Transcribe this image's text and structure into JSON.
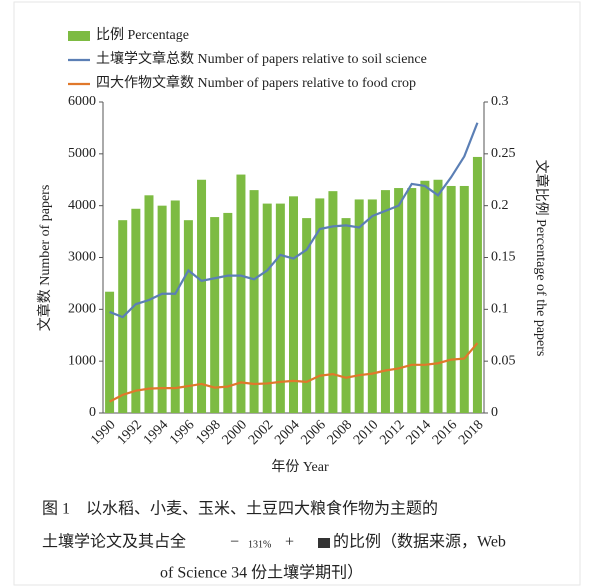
{
  "chart_data": {
    "type": "bar",
    "categories": [
      "1990",
      null,
      "1992",
      null,
      "1994",
      null,
      "1996",
      null,
      "1998",
      null,
      "2000",
      null,
      "2002",
      null,
      "2004",
      null,
      "2006",
      null,
      "2008",
      null,
      "2010",
      null,
      "2012",
      null,
      "2014",
      null,
      "2016",
      null,
      "2018"
    ],
    "series": [
      {
        "name": "比例 Percentage",
        "type": "bar",
        "axis": "y2",
        "color": "#7dbb42",
        "values": [
          0.117,
          0.186,
          0.197,
          0.21,
          0.2,
          0.205,
          0.186,
          0.225,
          0.189,
          0.193,
          0.23,
          0.215,
          0.202,
          0.202,
          0.209,
          0.188,
          0.207,
          0.214,
          0.188,
          0.206,
          0.206,
          0.215,
          0.217,
          0.217,
          0.224,
          0.225,
          0.219,
          0.219,
          0.247
        ]
      },
      {
        "name": "土壤学文章总数 Number of papers relative to soil science",
        "type": "line",
        "color": "#5b7fb5",
        "values": [
          1950,
          1850,
          2100,
          2180,
          2300,
          2300,
          2750,
          2550,
          2600,
          2650,
          2650,
          2580,
          2750,
          3050,
          2980,
          3150,
          3550,
          3600,
          3620,
          3580,
          3800,
          3900,
          4000,
          4420,
          4380,
          4200,
          4550,
          4950,
          5600
        ]
      },
      {
        "name": "四大作物文章数 Number of papers relative to food crop",
        "type": "line",
        "color": "#e0782b",
        "values": [
          220,
          350,
          430,
          470,
          480,
          480,
          520,
          560,
          490,
          510,
          590,
          560,
          570,
          600,
          620,
          600,
          720,
          750,
          680,
          730,
          760,
          820,
          860,
          930,
          930,
          960,
          1030,
          1050,
          1350
        ]
      }
    ],
    "ylim": [
      0,
      6000
    ],
    "yticks": [
      0,
      1000,
      2000,
      3000,
      4000,
      5000,
      6000
    ],
    "y2lim": [
      0,
      0.3
    ],
    "y2ticks": [
      0,
      0.05,
      0.1,
      0.15,
      0.2,
      0.25,
      0.3
    ],
    "ylabel": "文章数 Number of papers",
    "y2label": "文章比例 Percentage of the papers",
    "xlabel": "年份 Year",
    "legend": "top-left",
    "caption": [
      "图 1　以水稻、小麦、玉米、土豆四大粮食作物为主题的",
      "土壤学论文及其占全",
      "的比例（数据来源，Web",
      "of Science 34 份土壤学期刊）"
    ],
    "zoom_overlay": [
      "−",
      "131%",
      "+"
    ]
  }
}
